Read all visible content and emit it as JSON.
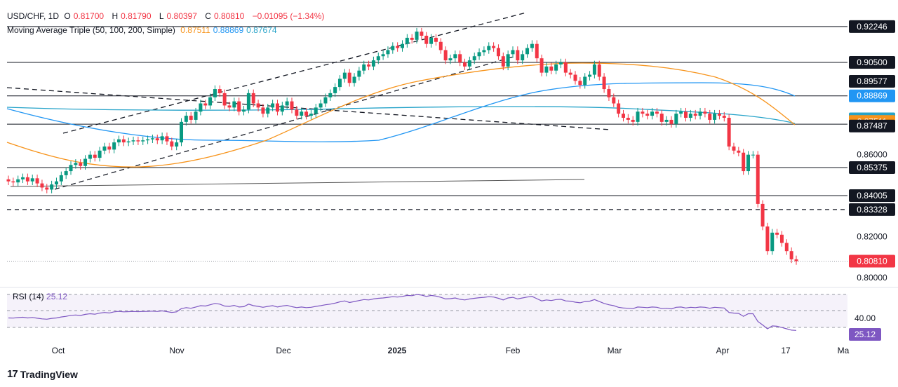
{
  "header": {
    "symbol": "USD/CHF, 1D",
    "o_label": "O",
    "o": "0.81700",
    "h_label": "H",
    "h": "0.81790",
    "l_label": "L",
    "l": "0.80397",
    "c_label": "C",
    "c": "0.80810",
    "change": "−0.01095 (−1.34%)",
    "ma_title": "Moving Average Triple (50, 100, 200, Simple)",
    "ma50": "0.87511",
    "ma100": "0.88869",
    "ma200": "0.87674"
  },
  "rsi": {
    "title": "RSI (14)",
    "value": "25.12",
    "level_label": "40.00"
  },
  "brand": "TradingView",
  "colors": {
    "up": "#089981",
    "down": "#f23645",
    "ma50": "#f7931a",
    "ma100": "#2196f3",
    "ma200": "#26a3c9",
    "rsi": "#7e57c2",
    "price_box": "#131722"
  },
  "chart_data": {
    "type": "candlestick",
    "symbol": "USD/CHF",
    "timeframe": "1D",
    "price_axis_labels": [
      "0.92246",
      "0.90500",
      "0.89577",
      "0.88869",
      "0.87674",
      "0.87511",
      "0.87487",
      "0.86000",
      "0.85375",
      "0.84005",
      "0.83328",
      "0.82000",
      "0.80810",
      "0.80000"
    ],
    "time_axis_labels": [
      "Oct",
      "Nov",
      "Dec",
      "2025",
      "Feb",
      "Mar",
      "Apr",
      "17",
      "Ma"
    ],
    "ylim": [
      0.797,
      0.932
    ],
    "horizontal_levels": [
      0.92246,
      0.905,
      0.88869,
      0.87487,
      0.85375,
      0.84005
    ],
    "dashed_level": 0.83328,
    "last_price": 0.8081,
    "closes": [
      0.847,
      0.8465,
      0.848,
      0.849,
      0.847,
      0.8485,
      0.846,
      0.844,
      0.843,
      0.8455,
      0.847,
      0.85,
      0.852,
      0.855,
      0.856,
      0.8545,
      0.858,
      0.86,
      0.8585,
      0.862,
      0.864,
      0.8625,
      0.866,
      0.8675,
      0.866,
      0.8665,
      0.867,
      0.8665,
      0.867,
      0.8675,
      0.868,
      0.867,
      0.869,
      0.8665,
      0.864,
      0.866,
      0.876,
      0.879,
      0.877,
      0.881,
      0.885,
      0.884,
      0.888,
      0.892,
      0.89,
      0.884,
      0.883,
      0.886,
      0.881,
      0.882,
      0.89,
      0.885,
      0.883,
      0.88,
      0.883,
      0.885,
      0.881,
      0.884,
      0.886,
      0.882,
      0.879,
      0.881,
      0.879,
      0.88,
      0.883,
      0.885,
      0.888,
      0.89,
      0.893,
      0.897,
      0.9,
      0.895,
      0.898,
      0.901,
      0.904,
      0.903,
      0.906,
      0.908,
      0.909,
      0.911,
      0.913,
      0.912,
      0.914,
      0.917,
      0.916,
      0.92,
      0.918,
      0.914,
      0.917,
      0.915,
      0.911,
      0.906,
      0.907,
      0.909,
      0.905,
      0.903,
      0.906,
      0.908,
      0.91,
      0.911,
      0.913,
      0.912,
      0.908,
      0.903,
      0.909,
      0.911,
      0.906,
      0.909,
      0.912,
      0.914,
      0.907,
      0.9,
      0.903,
      0.901,
      0.904,
      0.905,
      0.9,
      0.899,
      0.896,
      0.894,
      0.898,
      0.899,
      0.904,
      0.898,
      0.892,
      0.888,
      0.885,
      0.88,
      0.878,
      0.877,
      0.876,
      0.881,
      0.88,
      0.879,
      0.881,
      0.88,
      0.876,
      0.877,
      0.875,
      0.88,
      0.881,
      0.878,
      0.88,
      0.879,
      0.881,
      0.88,
      0.877,
      0.88,
      0.879,
      0.878,
      0.864,
      0.862,
      0.861,
      0.852,
      0.86,
      0.86,
      0.836,
      0.825,
      0.813,
      0.822,
      0.821,
      0.817,
      0.813,
      0.809,
      0.8081
    ]
  }
}
